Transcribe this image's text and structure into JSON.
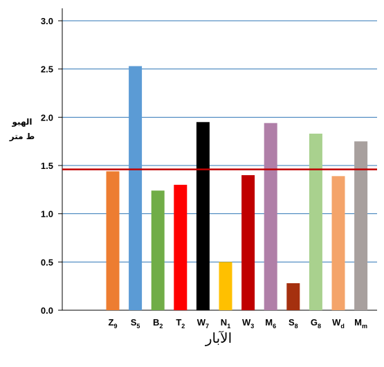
{
  "chart_data": {
    "type": "bar",
    "categories": [
      {
        "base": "Z",
        "sub": "9"
      },
      {
        "base": "S",
        "sub": "5"
      },
      {
        "base": "B",
        "sub": "2"
      },
      {
        "base": "T",
        "sub": "2"
      },
      {
        "base": "W",
        "sub": "7"
      },
      {
        "base": "N",
        "sub": "1"
      },
      {
        "base": "W",
        "sub": "3"
      },
      {
        "base": "M",
        "sub": "6"
      },
      {
        "base": "S",
        "sub": "8"
      },
      {
        "base": "G",
        "sub": "8"
      },
      {
        "base": "W",
        "sub": "d"
      },
      {
        "base": "M",
        "sub": "m"
      }
    ],
    "values": [
      1.44,
      2.53,
      1.24,
      1.3,
      1.95,
      0.5,
      1.4,
      1.94,
      0.28,
      1.83,
      1.39,
      1.75
    ],
    "bar_colors": [
      "#ED7D31",
      "#5B9BD5",
      "#70AD47",
      "#FF0000",
      "#000000",
      "#FFC000",
      "#C00000",
      "#B07FA8",
      "#A5300F",
      "#A9D18E",
      "#F4A46A",
      "#A8A09E"
    ],
    "reference_line": {
      "value": 1.46,
      "color": "#C00000"
    },
    "gridline_color": "#2E75B6",
    "ylim": [
      0,
      3.0
    ],
    "yticks": [
      "0.0",
      "0.5",
      "1.0",
      "1.5",
      "2.0",
      "2.5",
      "3.0"
    ],
    "ylabel_lines": [
      "الهبو",
      "ط متر"
    ],
    "xlabel": "الآبار",
    "grid": true
  }
}
